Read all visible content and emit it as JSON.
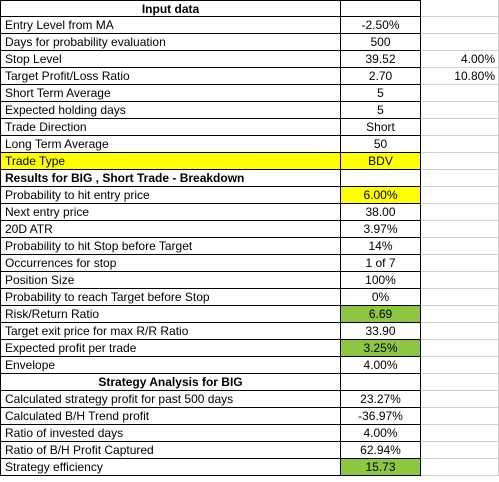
{
  "sections": {
    "input": {
      "title": "Input data",
      "rows": [
        {
          "label": "Entry Level from MA",
          "value": "-2.50%",
          "extra": ""
        },
        {
          "label": "Days for probability evaluation",
          "value": "500",
          "extra": ""
        },
        {
          "label": "Stop Level",
          "value": "39.52",
          "extra": "4.00%"
        },
        {
          "label": "Target Profit/Loss Ratio",
          "value": "2.70",
          "extra": "10.80%"
        },
        {
          "label": "Short Term Average",
          "value": "5",
          "extra": ""
        },
        {
          "label": "Expected holding days",
          "value": "5",
          "extra": ""
        },
        {
          "label": "Trade Direction",
          "value": "Short",
          "extra": ""
        },
        {
          "label": "Long Term Average",
          "value": "50",
          "extra": ""
        },
        {
          "label": "Trade Type",
          "value": "BDV",
          "extra": ""
        }
      ]
    },
    "results": {
      "title": "Results for BIG , Short Trade - Breakdown",
      "rows": [
        {
          "label": "Probability to hit entry price",
          "value": "6.00%"
        },
        {
          "label": "Next entry price",
          "value": "38.00"
        },
        {
          "label": "20D ATR",
          "value": "3.97%"
        },
        {
          "label": "Probability to hit Stop before Target",
          "value": "14%"
        },
        {
          "label": "Occurrences for stop",
          "value": "1 of 7"
        },
        {
          "label": "Position Size",
          "value": "100%"
        },
        {
          "label": "Probability to reach Target before Stop",
          "value": "0%"
        },
        {
          "label": "Risk/Return Ratio",
          "value": "6.69"
        },
        {
          "label": "Target exit price for max R/R Ratio",
          "value": "33.90"
        },
        {
          "label": "Expected profit per trade",
          "value": "3.25%"
        },
        {
          "label": "Envelope",
          "value": "4.00%"
        }
      ]
    },
    "strategy": {
      "title": "Strategy Analysis for BIG",
      "rows": [
        {
          "label": "Calculated strategy profit for past 500 days",
          "value": "23.27%"
        },
        {
          "label": "Calculated B/H Trend profit",
          "value": "-36.97%"
        },
        {
          "label": "Ratio of invested days",
          "value": "4.00%"
        },
        {
          "label": "Ratio of B/H Profit Captured",
          "value": "62.94%"
        },
        {
          "label": "Strategy efficiency",
          "value": "15.73"
        }
      ]
    }
  },
  "colors": {
    "highlight_yellow": "#ffff00",
    "highlight_green": "#8dc63f",
    "gridline": "#d0d0d0",
    "border": "#000000"
  }
}
